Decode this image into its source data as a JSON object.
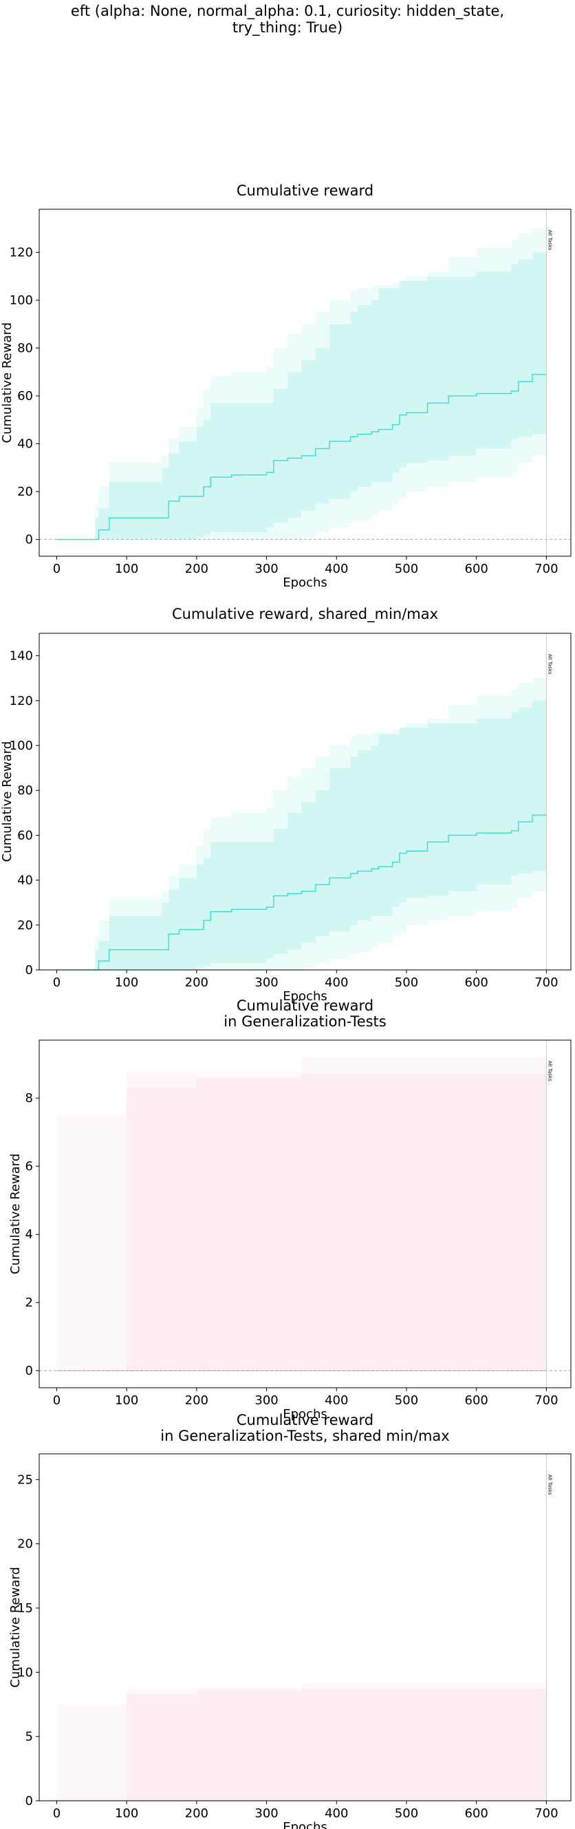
{
  "figure": {
    "suptitle_line1": "eft (alpha: None, normal_alpha: 0.1, curiosity: hidden_state,",
    "suptitle_line2": "try_thing: True)"
  },
  "chart_data": [
    {
      "type": "line",
      "title": "Cumulative reward",
      "xlabel": "Epochs",
      "ylabel": "Cumulative Reward",
      "xlim": [
        -25,
        735
      ],
      "ylim": [
        -7,
        138
      ],
      "xticks": [
        0,
        100,
        200,
        300,
        400,
        500,
        600,
        700
      ],
      "yticks": [
        0,
        20,
        40,
        60,
        80,
        100,
        120
      ],
      "zero_line": true,
      "vline": {
        "x": 700,
        "label": "All Tasks"
      },
      "color": "#40e0d0",
      "series": [
        {
          "x": [
            0,
            55,
            60,
            75,
            150,
            160,
            175,
            200,
            210,
            220,
            250,
            300,
            310,
            330,
            350,
            370,
            390,
            420,
            430,
            450,
            460,
            480,
            490,
            500,
            530,
            560,
            600,
            650,
            660,
            680,
            700
          ],
          "mean": [
            0,
            0,
            4,
            9,
            9,
            16,
            18,
            18,
            22,
            26,
            27,
            28,
            33,
            34,
            35,
            38,
            41,
            43,
            44,
            45,
            46,
            48,
            52,
            53,
            57,
            60,
            61,
            62,
            66,
            69,
            69
          ],
          "std_low": [
            0,
            0,
            0,
            0,
            0,
            0,
            0,
            1,
            2,
            3,
            3,
            5,
            7,
            9,
            12,
            15,
            17,
            20,
            22,
            24,
            24,
            28,
            30,
            32,
            33,
            35,
            38,
            42,
            43,
            44,
            44
          ],
          "std_high": [
            0,
            9,
            13,
            24,
            30,
            36,
            41,
            47,
            50,
            57,
            57,
            57,
            63,
            70,
            75,
            80,
            90,
            95,
            98,
            100,
            105,
            105,
            108,
            108,
            110,
            110,
            112,
            115,
            117,
            120,
            120
          ],
          "min": [
            0,
            0,
            0,
            0,
            0,
            0,
            0,
            0,
            0,
            0,
            0,
            0,
            0,
            0,
            1,
            3,
            5,
            7,
            8,
            10,
            12,
            15,
            17,
            20,
            22,
            24,
            26,
            28,
            32,
            35,
            35
          ],
          "max": [
            0,
            15,
            22,
            32,
            35,
            42,
            47,
            55,
            63,
            68,
            70,
            72,
            80,
            86,
            90,
            95,
            100,
            104,
            105,
            106,
            106,
            107,
            108,
            110,
            112,
            118,
            122,
            125,
            128,
            130,
            130
          ]
        }
      ]
    },
    {
      "type": "line",
      "title": "Cumulative reward, shared_min/max",
      "xlabel": "Epochs",
      "ylabel": "Cumulative Reward",
      "xlim": [
        -25,
        735
      ],
      "ylim": [
        0,
        150
      ],
      "xticks": [
        0,
        100,
        200,
        300,
        400,
        500,
        600,
        700
      ],
      "yticks": [
        0,
        20,
        40,
        60,
        80,
        100,
        120,
        140
      ],
      "zero_line": false,
      "vline": {
        "x": 700,
        "label": "All Tasks"
      },
      "color": "#40e0d0",
      "series": [
        {
          "x": [
            0,
            55,
            60,
            75,
            150,
            160,
            175,
            200,
            210,
            220,
            250,
            300,
            310,
            330,
            350,
            370,
            390,
            420,
            430,
            450,
            460,
            480,
            490,
            500,
            530,
            560,
            600,
            650,
            660,
            680,
            700
          ],
          "mean": [
            0,
            0,
            4,
            9,
            9,
            16,
            18,
            18,
            22,
            26,
            27,
            28,
            33,
            34,
            35,
            38,
            41,
            43,
            44,
            45,
            46,
            48,
            52,
            53,
            57,
            60,
            61,
            62,
            66,
            69,
            69
          ],
          "std_low": [
            0,
            0,
            0,
            0,
            0,
            0,
            0,
            1,
            2,
            3,
            3,
            5,
            7,
            9,
            12,
            15,
            17,
            20,
            22,
            24,
            24,
            28,
            30,
            32,
            33,
            35,
            38,
            42,
            43,
            44,
            44
          ],
          "std_high": [
            0,
            9,
            13,
            24,
            30,
            36,
            41,
            47,
            50,
            57,
            57,
            57,
            63,
            70,
            75,
            80,
            90,
            95,
            98,
            100,
            105,
            105,
            108,
            108,
            110,
            110,
            112,
            115,
            117,
            120,
            120
          ],
          "min": [
            0,
            0,
            0,
            0,
            0,
            0,
            0,
            0,
            0,
            0,
            0,
            0,
            0,
            0,
            1,
            3,
            5,
            7,
            8,
            10,
            12,
            15,
            17,
            20,
            22,
            24,
            26,
            28,
            32,
            35,
            35
          ],
          "max": [
            0,
            15,
            22,
            32,
            35,
            42,
            47,
            55,
            63,
            68,
            70,
            72,
            80,
            86,
            90,
            95,
            100,
            104,
            105,
            106,
            106,
            107,
            108,
            110,
            112,
            118,
            122,
            125,
            128,
            130,
            130
          ]
        }
      ]
    },
    {
      "type": "line",
      "title": "Cumulative reward\nin Generalization-Tests",
      "xlabel": "Epochs",
      "ylabel": "Cumulative Reward",
      "xlim": [
        -25,
        735
      ],
      "ylim": [
        -0.5,
        9.7
      ],
      "xticks": [
        0,
        100,
        200,
        300,
        400,
        500,
        600,
        700
      ],
      "yticks": [
        0,
        2,
        4,
        6,
        8
      ],
      "zero_line": true,
      "vline": {
        "x": 700,
        "label": "All Tasks"
      },
      "color": "#ffb6c1",
      "series": [
        {
          "x": [
            0,
            75,
            100,
            200,
            350,
            700
          ],
          "mean": [
            0,
            0,
            0,
            0,
            0,
            0
          ],
          "std_low": [
            0,
            0,
            0,
            0,
            0,
            0
          ],
          "std_high": [
            0,
            0,
            8.3,
            8.6,
            8.7,
            8.7
          ],
          "min": [
            0,
            0,
            0,
            0,
            0,
            0
          ],
          "max": [
            7.5,
            7.5,
            8.8,
            8.8,
            9.2,
            9.2
          ]
        }
      ]
    },
    {
      "type": "line",
      "title": "Cumulative reward\nin Generalization-Tests, shared min/max",
      "xlabel": "Epochs",
      "ylabel": "Cumulative Reward",
      "xlim": [
        -25,
        735
      ],
      "ylim": [
        0,
        27
      ],
      "xticks": [
        0,
        100,
        200,
        300,
        400,
        500,
        600,
        700
      ],
      "yticks": [
        0,
        5,
        10,
        15,
        20,
        25
      ],
      "zero_line": false,
      "vline": {
        "x": 700,
        "label": "All Tasks"
      },
      "color": "#ffb6c1",
      "series": [
        {
          "x": [
            0,
            75,
            100,
            200,
            350,
            700
          ],
          "mean": [
            0,
            0,
            0,
            0,
            0,
            0
          ],
          "std_low": [
            0,
            0,
            0,
            0,
            0,
            0
          ],
          "std_high": [
            0,
            0,
            8.3,
            8.6,
            8.7,
            8.7
          ],
          "min": [
            0,
            0,
            0,
            0,
            0,
            0
          ],
          "max": [
            7.5,
            7.5,
            8.8,
            8.8,
            9.2,
            9.2
          ]
        }
      ]
    }
  ]
}
